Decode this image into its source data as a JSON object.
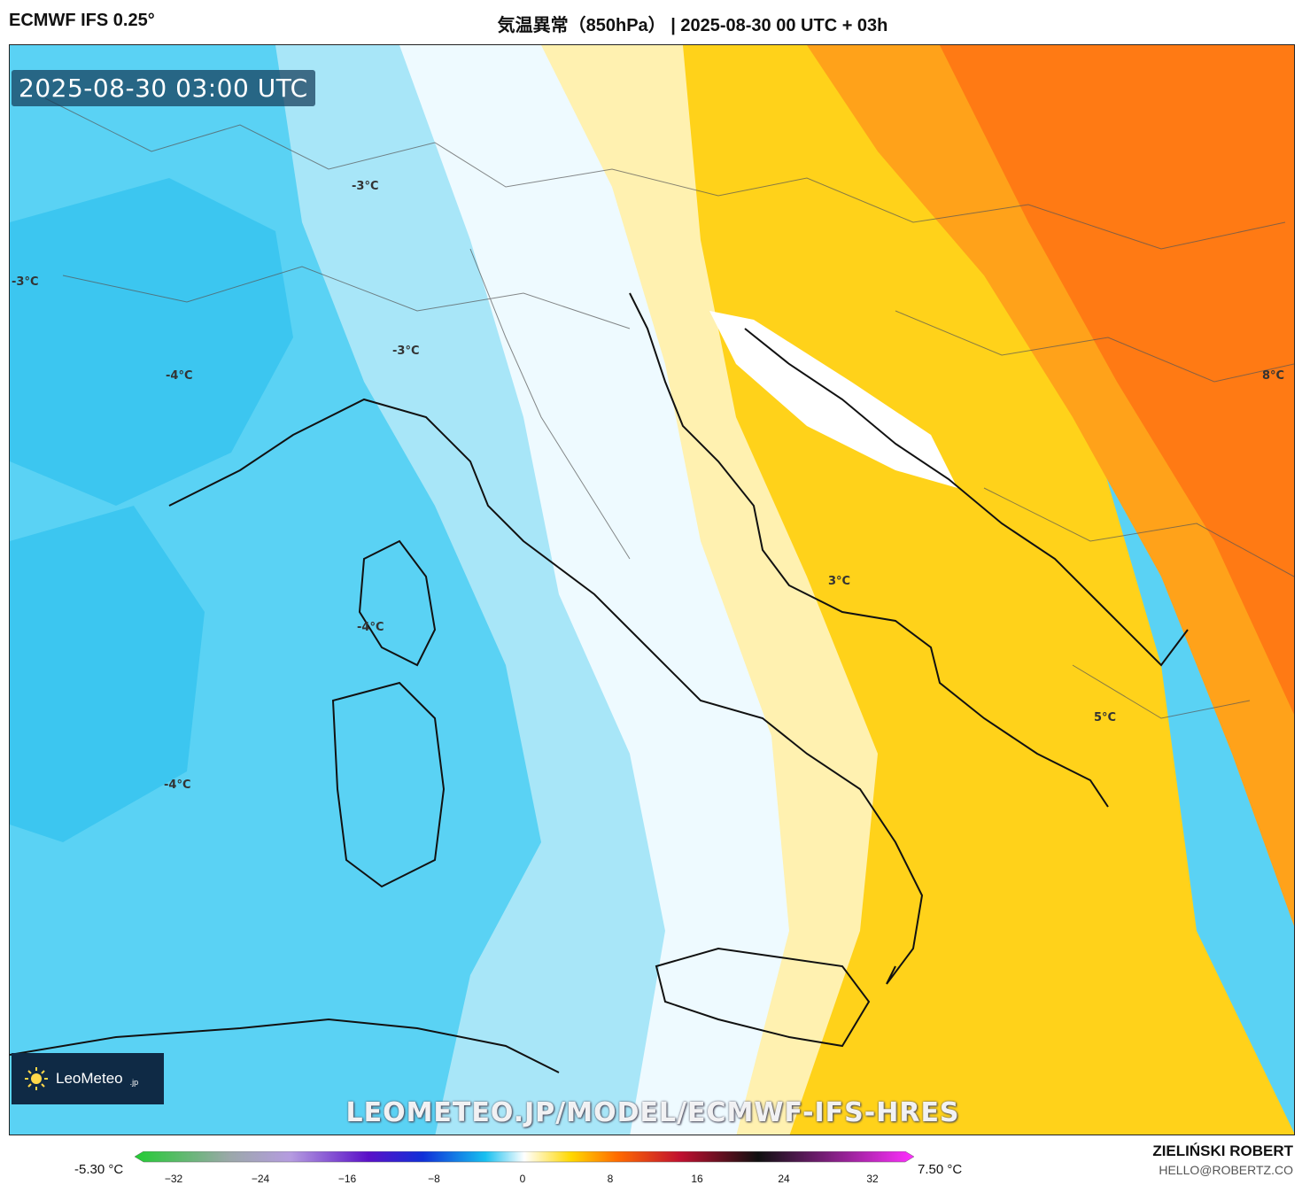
{
  "header": {
    "model": "ECMWF IFS 0.25°",
    "title": "気温異常（850hPa） | 2025-08-30 00 UTC + 03h"
  },
  "map": {
    "timestamp": "2025-08-30 03:00 UTC",
    "labels": {
      "alps_n": "-3°C",
      "france_w": "-3°C",
      "po_valley": "-3°C",
      "france_s": "-4°C",
      "corsica": "-4°C",
      "sea_w": "-4°C",
      "adriatic": "3°C",
      "ionian": "5°C",
      "east": "8°C"
    },
    "watermark": "LEOMETEO.JP/MODEL/ECMWF-IFS-HRES",
    "logo": {
      "icon": "sun-icon",
      "brand": "LeoMeteo",
      "suffix": ".jp"
    }
  },
  "legend": {
    "min_value": "-5.30 °C",
    "max_value": "7.50 °C",
    "ticks": [
      "−32",
      "−24",
      "−16",
      "−8",
      "0",
      "8",
      "16",
      "24",
      "32"
    ],
    "colors": [
      "#22cc33",
      "#9aa8a8",
      "#b59ce0",
      "#5a10c8",
      "#1030d8",
      "#18c0f0",
      "#ffffff",
      "#ffd800",
      "#ff6a00",
      "#c01030",
      "#101010",
      "#ff30ff"
    ]
  },
  "credits": {
    "name": "ZIELIŃSKI ROBERT",
    "email": "HELLO@ROBERTZ.CO"
  }
}
